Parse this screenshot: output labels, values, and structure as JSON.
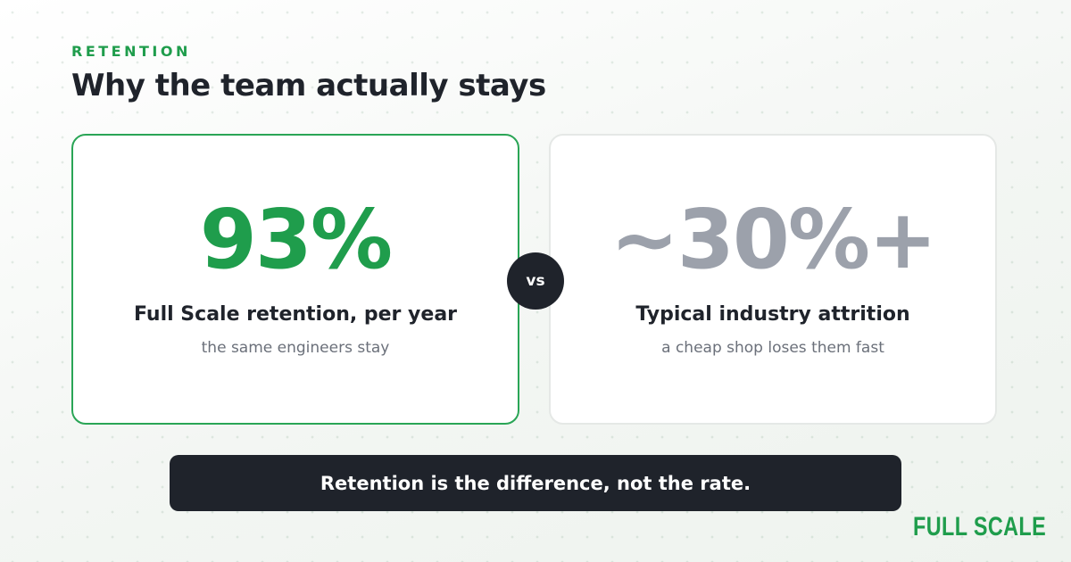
{
  "header": {
    "eyebrow": "RETENTION",
    "title": "Why the team actually stays"
  },
  "cards": [
    {
      "figure": "93%",
      "label": "Full Scale retention, per year",
      "note": "the same engineers stay"
    },
    {
      "figure": "~30%+",
      "label": "Typical industry attrition",
      "note": "a cheap shop loses them fast"
    }
  ],
  "versus": "vs",
  "banner": "Retention is the difference, not the rate.",
  "logo": "FULL SCALE"
}
